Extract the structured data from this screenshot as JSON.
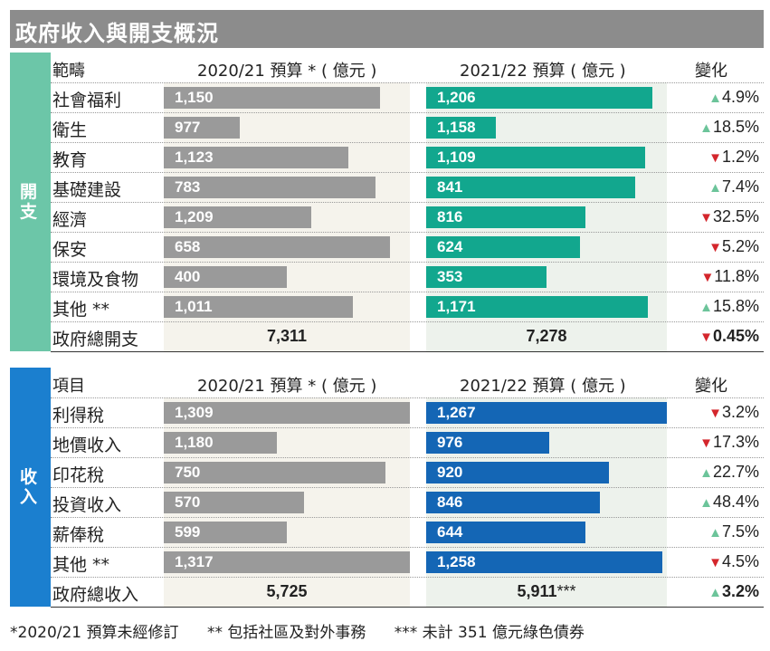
{
  "title": "政府收入與開支概況",
  "colors": {
    "title_bg": "#8c8c8c",
    "gray_bar": "#9a9a9a",
    "expenditure_accent": "#6cc6a8",
    "expenditure_bar": "#12a78e",
    "revenue_accent": "#1b7fcf",
    "revenue_bar": "#1466b5",
    "up_arrow": "#6cc49a",
    "down_arrow": "#d4262c"
  },
  "chart_data": [
    {
      "type": "bar",
      "section_label": "開支",
      "category_header": "範疇",
      "series_headers": [
        "2020/21 預算 * ( 億元 )",
        "2021/22 預算 ( 億元 )"
      ],
      "change_header": "變化",
      "categories": [
        "社會福利",
        "衛生",
        "教育",
        "基礎建設",
        "經濟",
        "保安",
        "環境及食物",
        "其他 **"
      ],
      "series": [
        {
          "name": "2020/21 預算 * ( 億元 )",
          "values": [
            1150,
            977,
            1123,
            783,
            1209,
            658,
            400,
            1011
          ],
          "labels": [
            "1,150",
            "977",
            "1,123",
            "783",
            "1,209",
            "658",
            "400",
            "1,011"
          ]
        },
        {
          "name": "2021/22 預算 ( 億元 )",
          "values": [
            1206,
            1158,
            1109,
            841,
            816,
            624,
            353,
            1171
          ],
          "labels": [
            "1,206",
            "1,158",
            "1,109",
            "841",
            "816",
            "624",
            "353",
            "1,171"
          ]
        }
      ],
      "bar_fill_fraction": {
        "left": [
          0.88,
          0.31,
          0.75,
          0.86,
          0.6,
          0.92,
          0.5,
          0.77
        ],
        "right": [
          0.94,
          0.29,
          0.91,
          0.87,
          0.66,
          0.64,
          0.5,
          0.92
        ]
      },
      "changes": [
        {
          "dir": "up",
          "text": "4.9%"
        },
        {
          "dir": "up",
          "text": "18.5%"
        },
        {
          "dir": "down",
          "text": "1.2%"
        },
        {
          "dir": "up",
          "text": "7.4%"
        },
        {
          "dir": "down",
          "text": "32.5%"
        },
        {
          "dir": "down",
          "text": "5.2%"
        },
        {
          "dir": "down",
          "text": "11.8%"
        },
        {
          "dir": "up",
          "text": "15.8%"
        }
      ],
      "total": {
        "label": "政府總開支",
        "left": "7,311",
        "right": "7,278",
        "right_suffix": "",
        "change_dir": "down",
        "change": "0.45%"
      }
    },
    {
      "type": "bar",
      "section_label": "收入",
      "category_header": "項目",
      "series_headers": [
        "2020/21 預算 * ( 億元 )",
        "2021/22 預算 ( 億元 )"
      ],
      "change_header": "變化",
      "categories": [
        "利得稅",
        "地價收入",
        "印花稅",
        "投資收入",
        "薪俸稅",
        "其他 **"
      ],
      "series": [
        {
          "name": "2020/21 預算 * ( 億元 )",
          "values": [
            1309,
            1180,
            750,
            570,
            599,
            1317
          ],
          "labels": [
            "1,309",
            "1,180",
            "750",
            "570",
            "599",
            "1,317"
          ]
        },
        {
          "name": "2021/22 預算 ( 億元 )",
          "values": [
            1267,
            976,
            920,
            846,
            644,
            1258
          ],
          "labels": [
            "1,267",
            "976",
            "920",
            "846",
            "644",
            "1,258"
          ]
        }
      ],
      "bar_fill_fraction": {
        "left": [
          1.0,
          0.46,
          0.9,
          0.57,
          0.5,
          1.0
        ],
        "right": [
          1.0,
          0.51,
          0.76,
          0.72,
          0.66,
          0.98
        ]
      },
      "changes": [
        {
          "dir": "down",
          "text": "3.2%"
        },
        {
          "dir": "down",
          "text": "17.3%"
        },
        {
          "dir": "up",
          "text": "22.7%"
        },
        {
          "dir": "up",
          "text": "48.4%"
        },
        {
          "dir": "up",
          "text": "7.5%"
        },
        {
          "dir": "down",
          "text": "4.5%"
        }
      ],
      "total": {
        "label": "政府總收入",
        "left": "5,725",
        "right": "5,911",
        "right_suffix": "***",
        "change_dir": "up",
        "change": "3.2%"
      }
    }
  ],
  "footnotes": [
    "*2020/21 預算未經修訂",
    "** 包括社區及對外事務",
    "*** 未計 351 億元綠色債券"
  ]
}
